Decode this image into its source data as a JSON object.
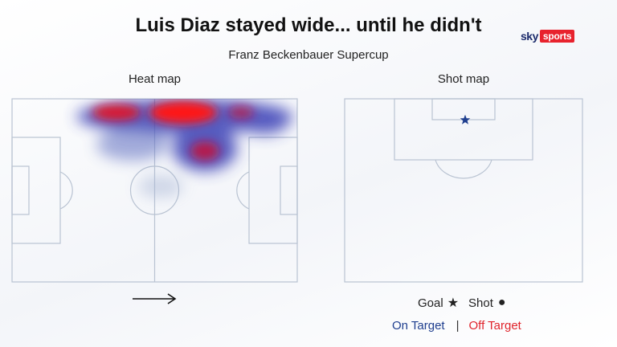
{
  "header": {
    "title": "Luis Diaz stayed wide... until he didn't",
    "subtitle": "Franz Beckenbauer Supercup"
  },
  "brand": {
    "sky": "sky",
    "sports": "sports",
    "accent": "#e8222d",
    "navy": "#1b2a6b"
  },
  "heatmap": {
    "label": "Heat map",
    "direction_icon": "right-arrow-icon",
    "colors": {
      "high": "#ff1010",
      "mid": "#2b2fb0",
      "low": "#a9b6d6"
    }
  },
  "shotmap": {
    "label": "Shot map",
    "shots": [
      {
        "type": "goal",
        "outcome": "on-target",
        "icon": "star-icon"
      }
    ]
  },
  "legend": {
    "goal_label": "Goal",
    "goal_symbol": "★",
    "shot_label": "Shot",
    "shot_symbol": "●",
    "on_target_label": "On Target",
    "separator": "|",
    "off_target_label": "Off Target",
    "on_target_color": "#1f3f8f",
    "off_target_color": "#e0242c"
  }
}
